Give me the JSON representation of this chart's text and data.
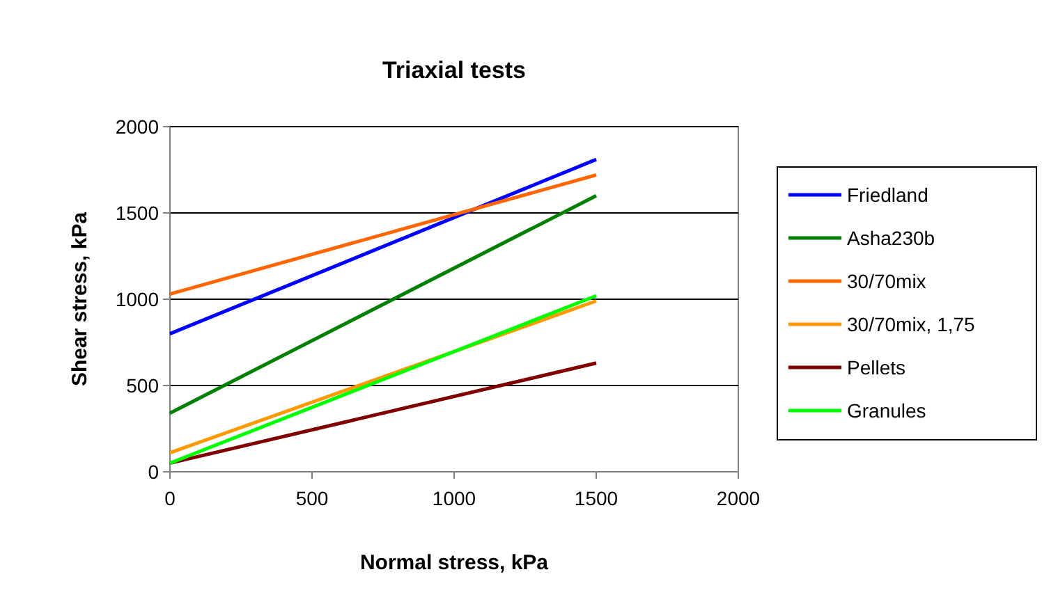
{
  "chart_data": {
    "type": "line",
    "title": "Triaxial tests",
    "xlabel": "Normal stress, kPa",
    "ylabel": "Shear stress, kPa",
    "x": [
      0,
      1500
    ],
    "series": [
      {
        "name": "Friedland",
        "color": "#0000ff",
        "values": [
          800,
          1810
        ]
      },
      {
        "name": "Asha230b",
        "color": "#008000",
        "values": [
          340,
          1600
        ]
      },
      {
        "name": "30/70mix",
        "color": "#ff6600",
        "values": [
          1030,
          1720
        ]
      },
      {
        "name": "30/70mix, 1,75",
        "color": "#ff9900",
        "values": [
          110,
          990
        ]
      },
      {
        "name": "Pellets",
        "color": "#800000",
        "values": [
          50,
          630
        ]
      },
      {
        "name": "Granules",
        "color": "#00ff00",
        "values": [
          50,
          1020
        ]
      }
    ],
    "xlim": [
      0,
      2000
    ],
    "xticks": [
      0,
      500,
      1000,
      1500,
      2000
    ],
    "ylim": [
      0,
      2000
    ],
    "yticks": [
      0,
      500,
      1000,
      1500,
      2000
    ],
    "grid": "y",
    "legend": "right",
    "marker": "none",
    "line_style": "solid"
  }
}
